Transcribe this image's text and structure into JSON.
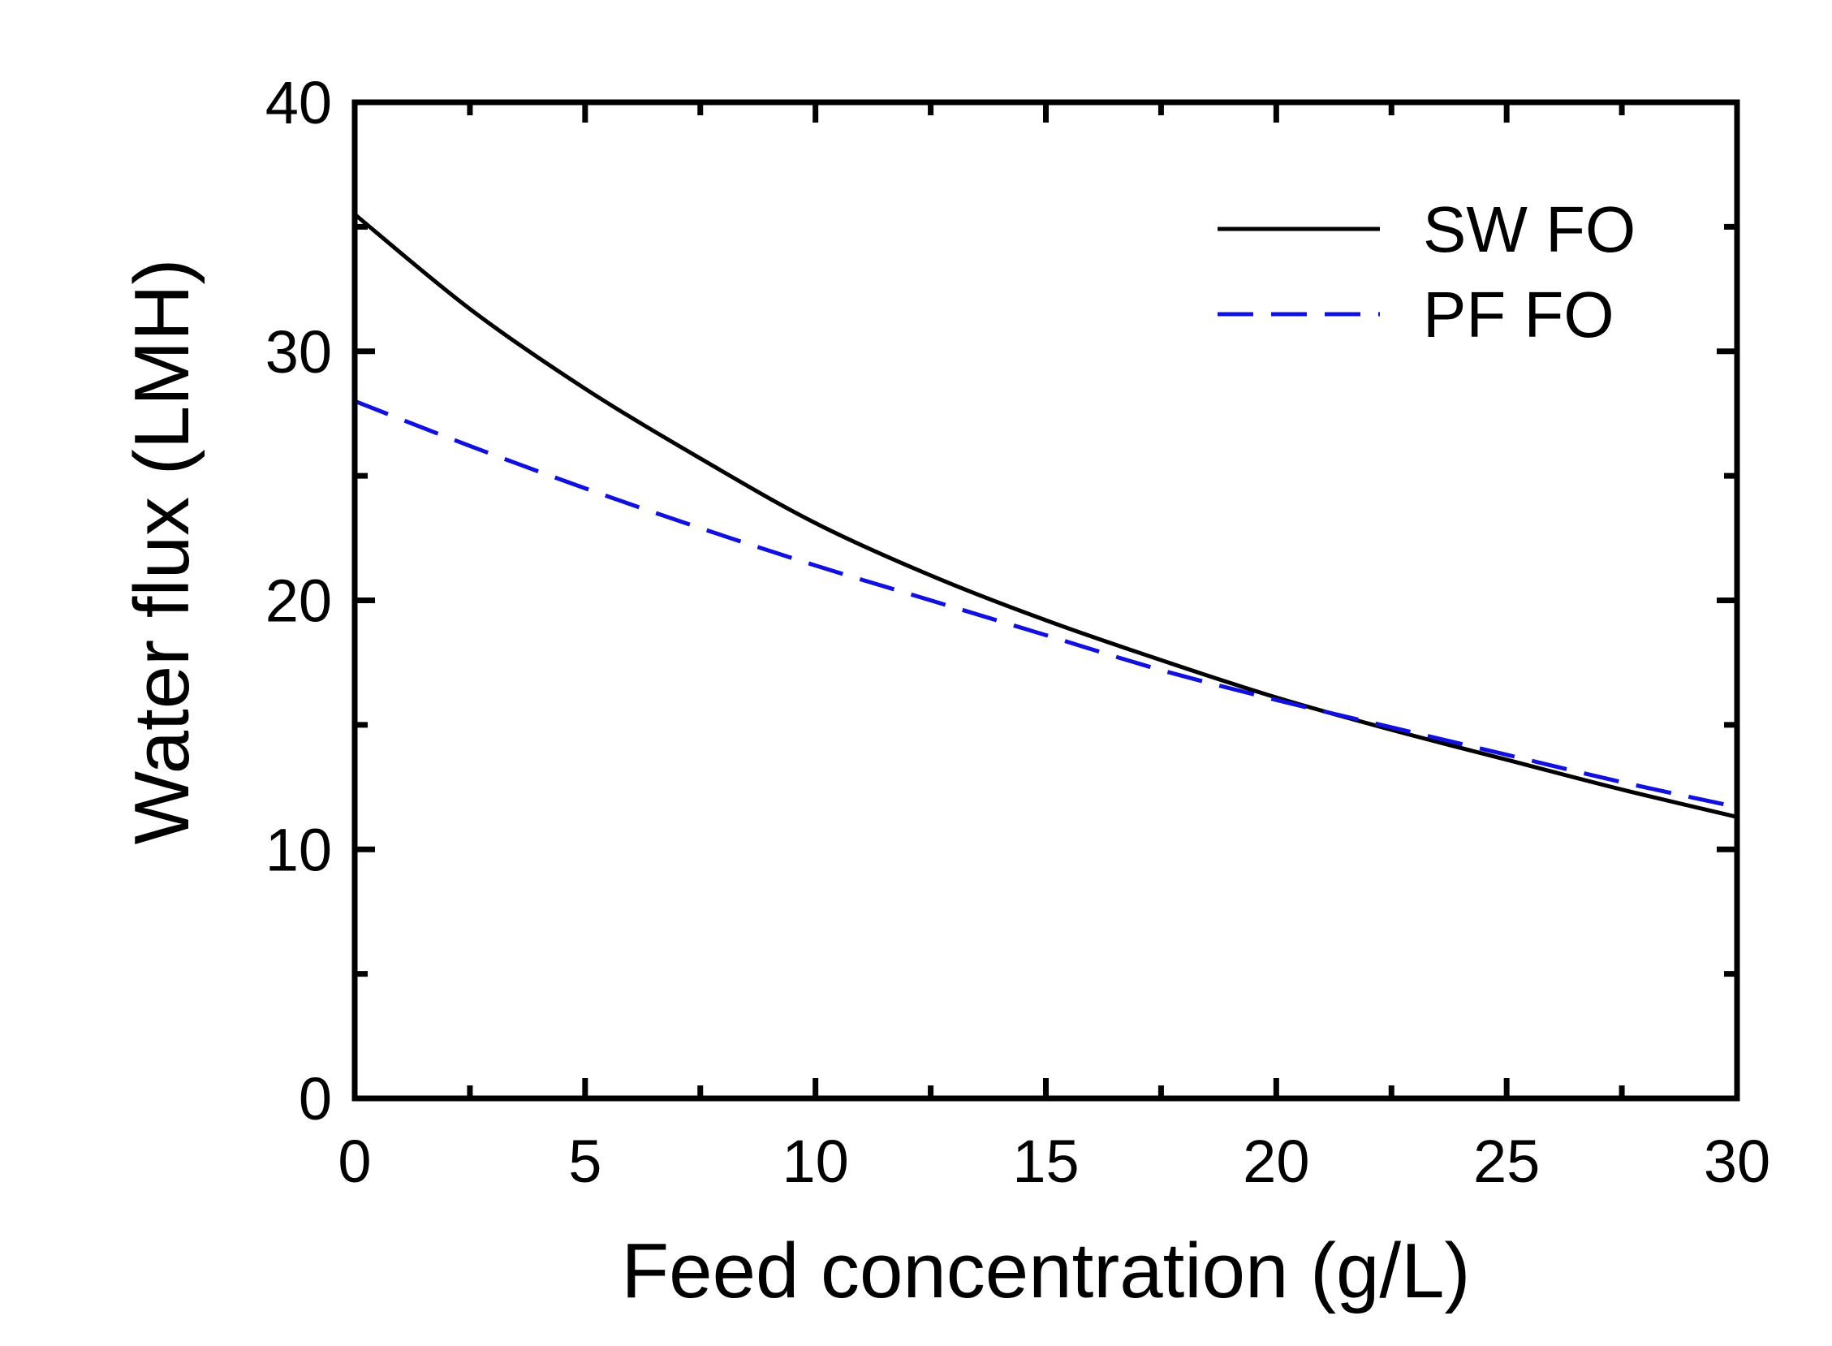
{
  "chart_data": {
    "type": "line",
    "xlabel": "Feed concentration (g/L)",
    "ylabel": "Water flux (LMH)",
    "xlim": [
      0,
      30
    ],
    "ylim": [
      0,
      40
    ],
    "xticks": [
      0,
      5,
      10,
      15,
      20,
      25,
      30
    ],
    "xtick_labels": [
      "0",
      "5",
      "10",
      "15",
      "20",
      "25",
      "30"
    ],
    "yticks": [
      0,
      10,
      20,
      30,
      40
    ],
    "ytick_labels": [
      "0",
      "10",
      "20",
      "30",
      "40"
    ],
    "x_minor_step": 2.5,
    "y_minor_step": 5,
    "grid": false,
    "legend_position": "top-right",
    "x": [
      0,
      2.5,
      5,
      7.5,
      10,
      12.5,
      15,
      17.5,
      20,
      22.5,
      25,
      27.5,
      30
    ],
    "series": [
      {
        "name": "SW FO",
        "color": "#000000",
        "style": "solid",
        "values": [
          35.5,
          31.7,
          28.5,
          25.7,
          23.1,
          21.0,
          19.2,
          17.6,
          16.1,
          14.8,
          13.6,
          12.4,
          11.3
        ]
      },
      {
        "name": "PF FO",
        "color": "#1010e0",
        "style": "dashed",
        "values": [
          28.0,
          26.2,
          24.5,
          22.9,
          21.4,
          20.0,
          18.6,
          17.2,
          16.0,
          14.9,
          13.8,
          12.7,
          11.7
        ]
      }
    ]
  }
}
